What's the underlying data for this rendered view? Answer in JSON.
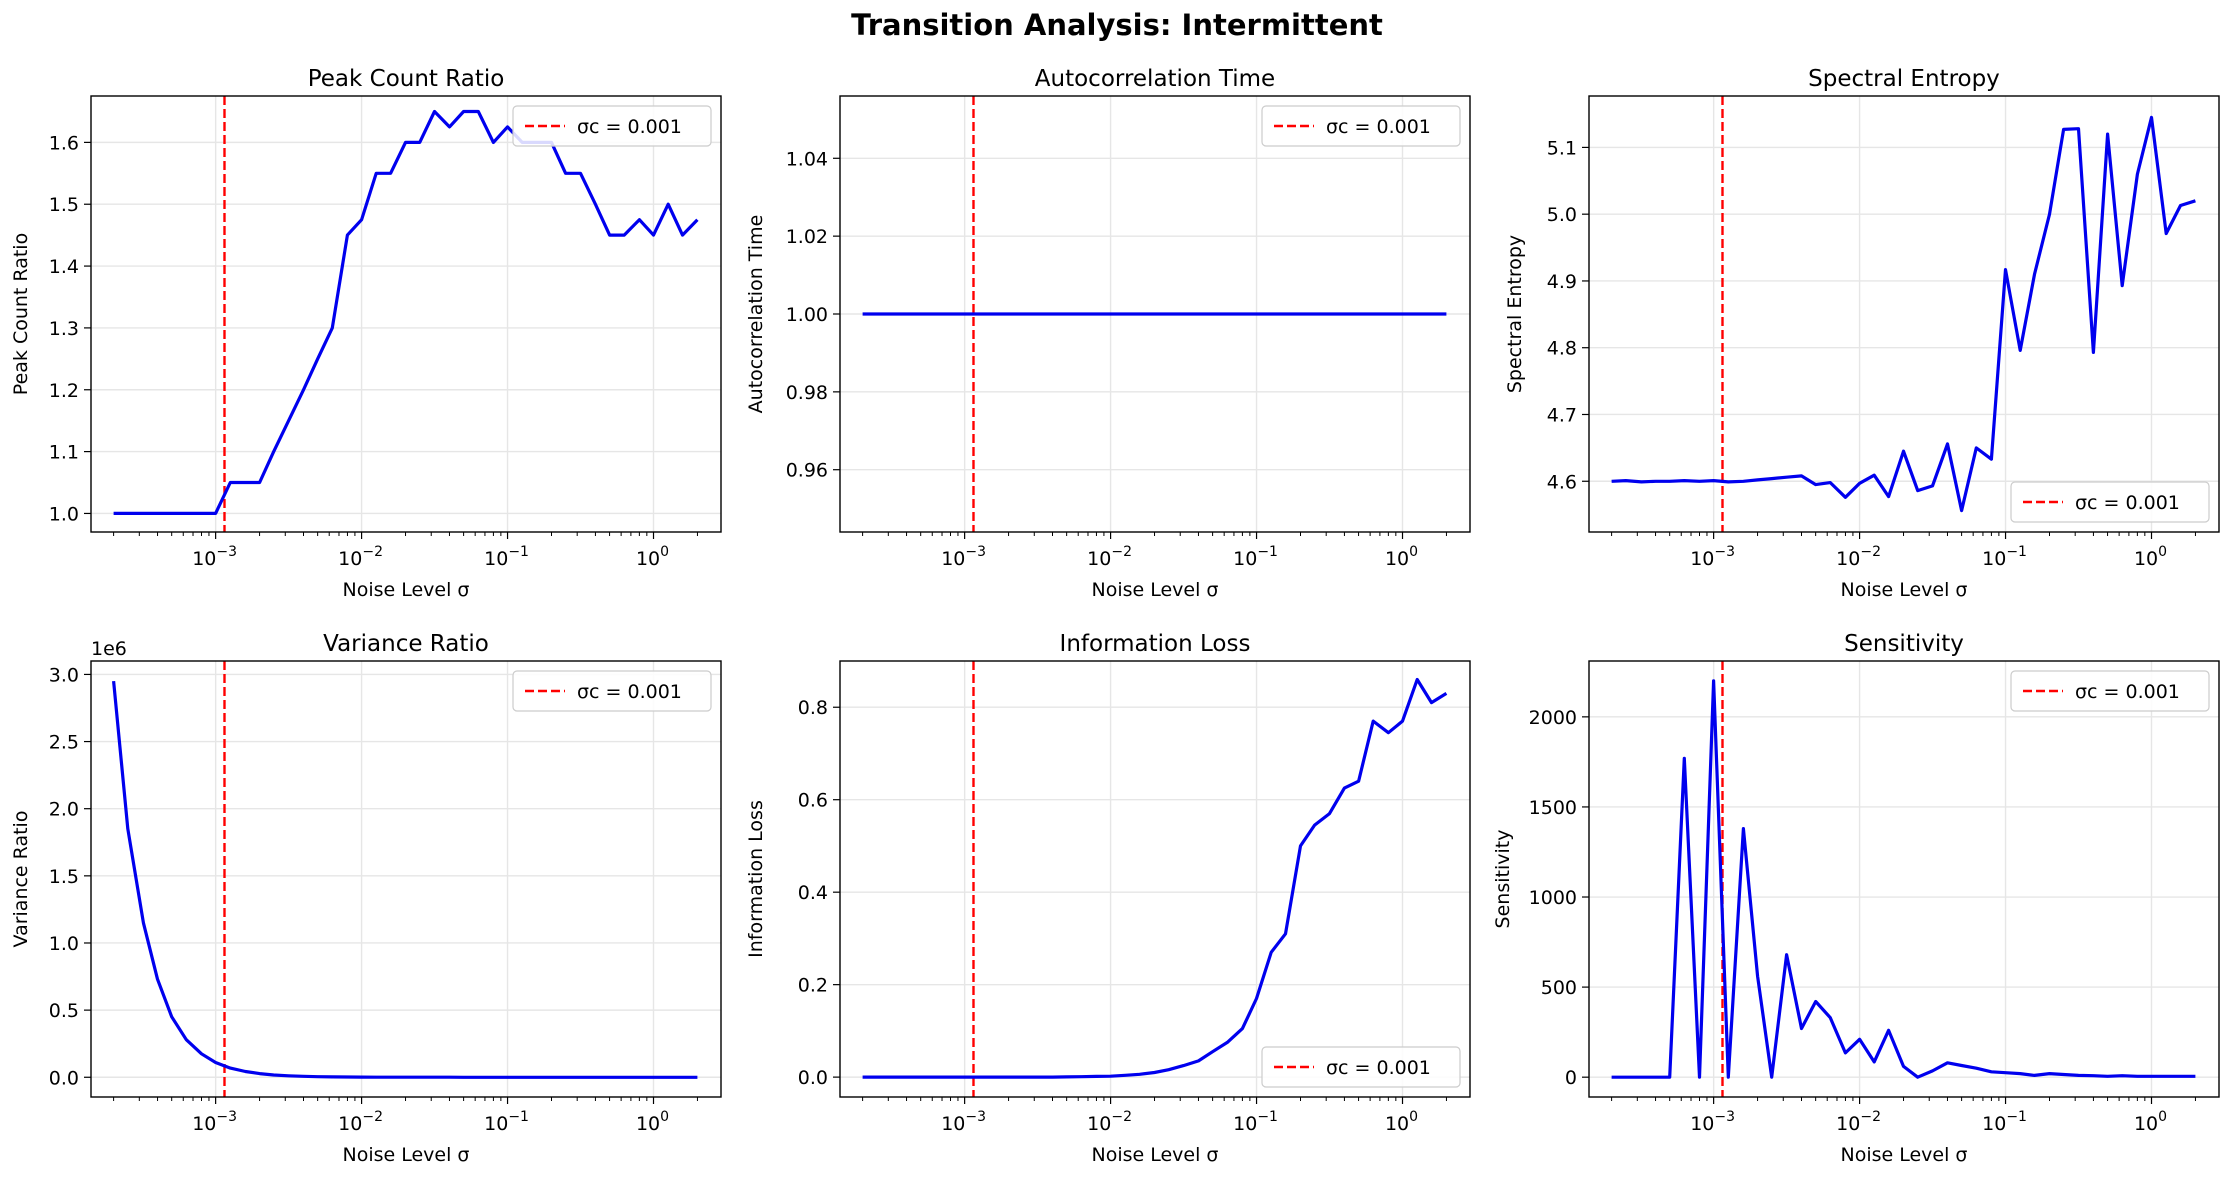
{
  "suptitle": "Transition Analysis: Intermittent",
  "colors": {
    "series": "#0000ee",
    "critical_line": "#ff0000",
    "grid": "#e6e6e6",
    "axes": "#000000"
  },
  "chart_data": [
    {
      "type": "line",
      "title": "Peak Count Ratio",
      "xlabel": "Noise Level σ",
      "ylabel": "Peak Count Ratio",
      "xscale": "log",
      "xlim": [
        0.00014,
        2.9
      ],
      "ylim": [
        0.97,
        1.675
      ],
      "yticks": [
        1.0,
        1.1,
        1.2,
        1.3,
        1.4,
        1.5,
        1.6
      ],
      "ytick_labels": [
        "1.0",
        "1.1",
        "1.2",
        "1.3",
        "1.4",
        "1.5",
        "1.6"
      ],
      "xticks": [
        0.001,
        0.01,
        0.1,
        1
      ],
      "xtick_labels": [
        "10",
        "10",
        "10",
        "10"
      ],
      "xtick_exponents": [
        "−3",
        "−2",
        "−1",
        "0"
      ],
      "grid": true,
      "legend_position": "top-right",
      "critical_sigma": 0.00115,
      "critical_label": "σc = 0.001",
      "x": [
        0.0002,
        0.00025,
        0.00032,
        0.0004,
        0.0005,
        0.00063,
        0.0008,
        0.001,
        0.00126,
        0.0016,
        0.002,
        0.0025,
        0.00316,
        0.004,
        0.005,
        0.0063,
        0.008,
        0.01,
        0.0126,
        0.0158,
        0.02,
        0.025,
        0.0316,
        0.04,
        0.05,
        0.063,
        0.08,
        0.1,
        0.126,
        0.158,
        0.2,
        0.25,
        0.316,
        0.4,
        0.5,
        0.63,
        0.8,
        1.0,
        1.26,
        1.58,
        2.0
      ],
      "y": [
        1.0,
        1.0,
        1.0,
        1.0,
        1.0,
        1.0,
        1.0,
        1.0,
        1.05,
        1.05,
        1.05,
        1.1,
        1.15,
        1.2,
        1.25,
        1.3,
        1.45,
        1.475,
        1.55,
        1.55,
        1.6,
        1.6,
        1.65,
        1.625,
        1.65,
        1.65,
        1.6,
        1.625,
        1.6,
        1.6,
        1.6,
        1.55,
        1.55,
        1.5,
        1.45,
        1.45,
        1.475,
        1.45,
        1.5,
        1.45,
        1.475
      ],
      "offset_label": ""
    },
    {
      "type": "line",
      "title": "Autocorrelation Time",
      "xlabel": "Noise Level σ",
      "ylabel": "Autocorrelation Time",
      "xscale": "log",
      "xlim": [
        0.00014,
        2.9
      ],
      "ylim": [
        0.944,
        1.056
      ],
      "yticks": [
        0.96,
        0.98,
        1.0,
        1.02,
        1.04
      ],
      "ytick_labels": [
        "0.96",
        "0.98",
        "1.00",
        "1.02",
        "1.04"
      ],
      "xticks": [
        0.001,
        0.01,
        0.1,
        1
      ],
      "xtick_labels": [
        "10",
        "10",
        "10",
        "10"
      ],
      "xtick_exponents": [
        "−3",
        "−2",
        "−1",
        "0"
      ],
      "grid": true,
      "legend_position": "top-right",
      "critical_sigma": 0.00115,
      "critical_label": "σc = 0.001",
      "x": [
        0.0002,
        2.0
      ],
      "y": [
        1.0,
        1.0
      ],
      "offset_label": ""
    },
    {
      "type": "line",
      "title": "Spectral Entropy",
      "xlabel": "Noise Level σ",
      "ylabel": "Spectral Entropy",
      "xscale": "log",
      "xlim": [
        0.00014,
        2.9
      ],
      "ylim": [
        4.524,
        5.177
      ],
      "yticks": [
        4.6,
        4.7,
        4.8,
        4.9,
        5.0,
        5.1
      ],
      "ytick_labels": [
        "4.6",
        "4.7",
        "4.8",
        "4.9",
        "5.0",
        "5.1"
      ],
      "xticks": [
        0.001,
        0.01,
        0.1,
        1
      ],
      "xtick_labels": [
        "10",
        "10",
        "10",
        "10"
      ],
      "xtick_exponents": [
        "−3",
        "−2",
        "−1",
        "0"
      ],
      "grid": true,
      "legend_position": "bottom-right",
      "critical_sigma": 0.00115,
      "critical_label": "σc = 0.001",
      "x": [
        0.0002,
        0.00025,
        0.00032,
        0.0004,
        0.0005,
        0.00063,
        0.0008,
        0.001,
        0.00126,
        0.0016,
        0.002,
        0.0025,
        0.00316,
        0.004,
        0.005,
        0.0063,
        0.008,
        0.01,
        0.0126,
        0.0158,
        0.02,
        0.025,
        0.0316,
        0.04,
        0.05,
        0.063,
        0.08,
        0.1,
        0.126,
        0.158,
        0.2,
        0.25,
        0.316,
        0.4,
        0.5,
        0.63,
        0.8,
        1.0,
        1.26,
        1.58,
        2.0
      ],
      "y": [
        4.6,
        4.601,
        4.599,
        4.6,
        4.6,
        4.601,
        4.6,
        4.601,
        4.599,
        4.6,
        4.602,
        4.604,
        4.606,
        4.608,
        4.595,
        4.598,
        4.576,
        4.597,
        4.609,
        4.577,
        4.645,
        4.586,
        4.593,
        4.656,
        4.556,
        4.65,
        4.633,
        4.917,
        4.796,
        4.91,
        5.0,
        5.127,
        5.128,
        4.793,
        5.12,
        4.893,
        5.06,
        5.145,
        4.971,
        5.013,
        5.02
      ],
      "offset_label": ""
    },
    {
      "type": "line",
      "title": "Variance Ratio",
      "xlabel": "Noise Level σ",
      "ylabel": "Variance Ratio",
      "xscale": "log",
      "xlim": [
        0.00014,
        2.9
      ],
      "ylim": [
        -0.147,
        3.1
      ],
      "yticks": [
        0.0,
        0.5,
        1.0,
        1.5,
        2.0,
        2.5,
        3.0
      ],
      "ytick_labels": [
        "0.0",
        "0.5",
        "1.0",
        "1.5",
        "2.0",
        "2.5",
        "3.0"
      ],
      "xticks": [
        0.001,
        0.01,
        0.1,
        1
      ],
      "xtick_labels": [
        "10",
        "10",
        "10",
        "10"
      ],
      "xtick_exponents": [
        "−3",
        "−2",
        "−1",
        "0"
      ],
      "grid": true,
      "legend_position": "top-right",
      "critical_sigma": 0.00115,
      "critical_label": "σc = 0.001",
      "x": [
        0.0002,
        0.00025,
        0.00032,
        0.0004,
        0.0005,
        0.00063,
        0.0008,
        0.001,
        0.00126,
        0.0016,
        0.002,
        0.0025,
        0.00316,
        0.004,
        0.005,
        0.0063,
        0.008,
        0.01,
        0.0126,
        0.0158,
        0.02,
        0.025,
        0.0316,
        0.04,
        0.05,
        0.063,
        0.08,
        0.1,
        0.126,
        0.158,
        0.2,
        0.25,
        0.316,
        0.4,
        0.5,
        0.63,
        0.8,
        1.0,
        1.26,
        1.58,
        2.0
      ],
      "y": [
        2.95,
        1.85,
        1.15,
        0.73,
        0.45,
        0.28,
        0.175,
        0.11,
        0.068,
        0.043,
        0.027,
        0.017,
        0.011,
        0.007,
        0.004,
        0.003,
        0.002,
        0.001,
        0.0006,
        0.0004,
        0.0003,
        0.0002,
        0.0001,
        0.0001,
        0,
        0,
        0,
        0,
        0,
        0,
        0,
        0,
        0,
        0,
        0,
        0,
        0,
        0,
        0,
        0,
        0
      ],
      "offset_label": "1e6"
    },
    {
      "type": "line",
      "title": "Information Loss",
      "xlabel": "Noise Level σ",
      "ylabel": "Information Loss",
      "xscale": "log",
      "xlim": [
        0.00014,
        2.9
      ],
      "ylim": [
        -0.043,
        0.9
      ],
      "yticks": [
        0.0,
        0.2,
        0.4,
        0.6,
        0.8
      ],
      "ytick_labels": [
        "0.0",
        "0.2",
        "0.4",
        "0.6",
        "0.8"
      ],
      "xticks": [
        0.001,
        0.01,
        0.1,
        1
      ],
      "xtick_labels": [
        "10",
        "10",
        "10",
        "10"
      ],
      "xtick_exponents": [
        "−3",
        "−2",
        "−1",
        "0"
      ],
      "grid": true,
      "legend_position": "bottom-right",
      "critical_sigma": 0.00115,
      "critical_label": "σc = 0.001",
      "x": [
        0.0002,
        0.00025,
        0.00032,
        0.0004,
        0.0005,
        0.00063,
        0.0008,
        0.001,
        0.00126,
        0.0016,
        0.002,
        0.0025,
        0.00316,
        0.004,
        0.005,
        0.0063,
        0.008,
        0.01,
        0.0126,
        0.0158,
        0.02,
        0.025,
        0.0316,
        0.04,
        0.05,
        0.063,
        0.08,
        0.1,
        0.126,
        0.158,
        0.2,
        0.25,
        0.316,
        0.4,
        0.5,
        0.63,
        0.8,
        1.0,
        1.26,
        1.58,
        2.0
      ],
      "y": [
        0,
        0,
        0,
        0,
        0,
        0,
        0,
        0,
        0,
        0,
        0,
        0,
        0,
        0,
        0.0005,
        0.001,
        0.0015,
        0.002,
        0.004,
        0.006,
        0.01,
        0.016,
        0.025,
        0.035,
        0.055,
        0.075,
        0.105,
        0.17,
        0.27,
        0.31,
        0.5,
        0.545,
        0.57,
        0.625,
        0.64,
        0.77,
        0.745,
        0.77,
        0.86,
        0.81,
        0.83
      ],
      "offset_label": ""
    },
    {
      "type": "line",
      "title": "Sensitivity",
      "xlabel": "Noise Level σ",
      "ylabel": "Sensitivity",
      "xscale": "log",
      "xlim": [
        0.00014,
        2.9
      ],
      "ylim": [
        -110,
        2310
      ],
      "yticks": [
        0,
        500,
        1000,
        1500,
        2000
      ],
      "ytick_labels": [
        "0",
        "500",
        "1000",
        "1500",
        "2000"
      ],
      "xticks": [
        0.001,
        0.01,
        0.1,
        1
      ],
      "xtick_labels": [
        "10",
        "10",
        "10",
        "10"
      ],
      "xtick_exponents": [
        "−3",
        "−2",
        "−1",
        "0"
      ],
      "grid": true,
      "legend_position": "top-right",
      "critical_sigma": 0.00115,
      "critical_label": "σc = 0.001",
      "x": [
        0.0002,
        0.00025,
        0.00032,
        0.0004,
        0.0005,
        0.00063,
        0.0008,
        0.001,
        0.00126,
        0.0016,
        0.002,
        0.0025,
        0.00316,
        0.004,
        0.005,
        0.0063,
        0.008,
        0.01,
        0.0126,
        0.0158,
        0.02,
        0.025,
        0.0316,
        0.04,
        0.05,
        0.063,
        0.08,
        0.1,
        0.126,
        0.158,
        0.2,
        0.25,
        0.316,
        0.4,
        0.5,
        0.63,
        0.8,
        1.0,
        1.26,
        1.58,
        2.0
      ],
      "y": [
        0,
        0,
        0,
        0,
        0,
        1770,
        0,
        2200,
        0,
        1380,
        560,
        0,
        680,
        270,
        420,
        330,
        135,
        210,
        85,
        260,
        60,
        0,
        35,
        80,
        65,
        50,
        30,
        25,
        20,
        10,
        20,
        15,
        10,
        8,
        5,
        8,
        5,
        5,
        5,
        5,
        5
      ],
      "offset_label": ""
    }
  ]
}
